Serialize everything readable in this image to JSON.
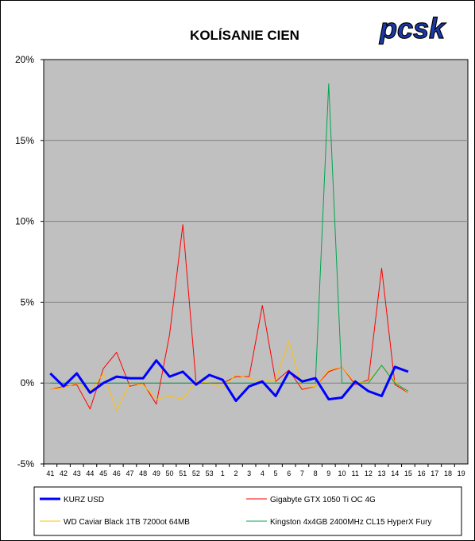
{
  "logo": {
    "text": "pcsk"
  },
  "colors": {
    "plot_bg": "#c0c0c0",
    "grid": "#808080"
  },
  "chart_data": {
    "type": "line",
    "title": "KOLÍSANIE CIEN",
    "xlabel": "",
    "ylabel": "",
    "ylim": [
      -5,
      20
    ],
    "yticks": [
      -5,
      0,
      5,
      10,
      15,
      20
    ],
    "ytick_labels": [
      "-5%",
      "0%",
      "5%",
      "10%",
      "15%",
      "20%"
    ],
    "grid": true,
    "legend_position": "bottom",
    "categories": [
      "41",
      "42",
      "43",
      "44",
      "45",
      "46",
      "47",
      "48",
      "49",
      "50",
      "51",
      "52",
      "53",
      "1",
      "2",
      "3",
      "4",
      "5",
      "6",
      "7",
      "8",
      "9",
      "10",
      "11",
      "12",
      "13",
      "14",
      "15",
      "16",
      "17",
      "18",
      "19"
    ],
    "series": [
      {
        "name": "KURZ USD",
        "color": "#0000ff",
        "width": 3,
        "values": [
          0.6,
          -0.2,
          0.6,
          -0.6,
          0.0,
          0.4,
          0.3,
          0.3,
          1.4,
          0.4,
          0.7,
          -0.1,
          0.5,
          0.2,
          -1.1,
          -0.2,
          0.1,
          -0.8,
          0.7,
          0.1,
          0.3,
          -1.0,
          -0.9,
          0.1,
          -0.5,
          -0.8,
          1.0,
          0.7,
          null,
          null,
          null,
          null
        ]
      },
      {
        "name": "Gigabyte GTX 1050 Ti OC 4G",
        "color": "#ff0000",
        "width": 1,
        "values": [
          -0.4,
          -0.2,
          -0.1,
          -1.6,
          0.9,
          1.9,
          -0.2,
          0.0,
          -1.3,
          3.0,
          9.8,
          0.0,
          0.0,
          0.0,
          0.4,
          0.4,
          4.8,
          0.1,
          0.8,
          -0.4,
          -0.2,
          0.7,
          1.0,
          -0.1,
          0.2,
          7.1,
          -0.1,
          -0.6,
          null,
          null,
          null,
          null
        ]
      },
      {
        "name": "WD Caviar Black 1TB 7200ot 64MB",
        "color": "#ffc000",
        "width": 1,
        "values": [
          -0.4,
          -0.3,
          0.0,
          -0.5,
          0.6,
          -1.7,
          0.0,
          -0.1,
          -1.0,
          -0.8,
          -1.0,
          0.1,
          0.0,
          -0.3,
          0.5,
          0.3,
          0.1,
          0.2,
          2.6,
          -0.3,
          -0.2,
          0.8,
          1.0,
          0.0,
          0.1,
          1.1,
          0.1,
          -0.6,
          null,
          null,
          null,
          null
        ]
      },
      {
        "name": "Kingston 4x4GB 2400MHz CL15 HyperX Fury",
        "color": "#00a550",
        "width": 1,
        "values": [
          0.0,
          0.0,
          0.0,
          0.0,
          0.0,
          0.0,
          0.0,
          0.0,
          0.0,
          0.0,
          0.0,
          0.0,
          0.0,
          0.0,
          0.0,
          0.0,
          0.0,
          0.0,
          0.0,
          0.0,
          0.0,
          18.5,
          0.0,
          0.0,
          0.0,
          1.1,
          0.0,
          -0.5,
          null,
          null,
          null,
          null
        ]
      }
    ]
  }
}
